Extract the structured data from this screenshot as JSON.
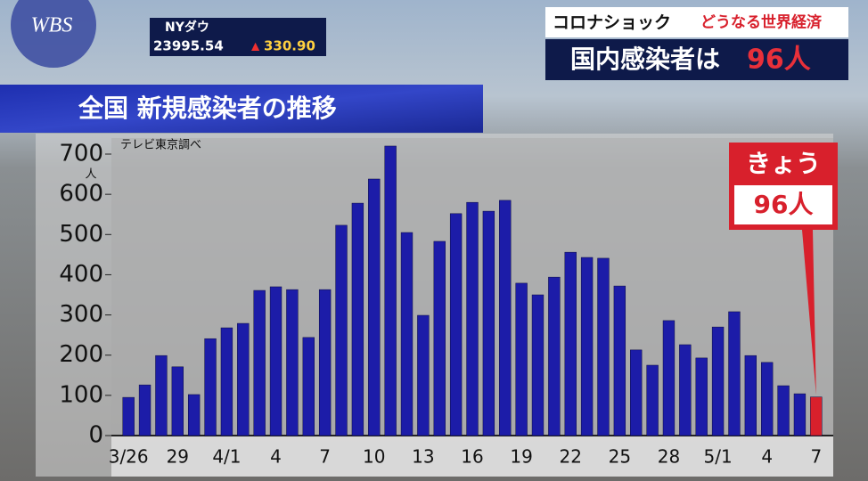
{
  "logo": "WBS",
  "ticker": {
    "label": "NYダウ",
    "value": "23995.54",
    "arrow": "▲",
    "change": "330.90"
  },
  "headline": {
    "kicker": "コロナショック",
    "kicker_sub": "どうなる世界経済",
    "main": "国内感染者は",
    "main_number": "96人"
  },
  "chart_data": {
    "type": "bar",
    "title": "全国 新規感染者の推移",
    "source": "テレビ東京調べ",
    "y_unit": "人",
    "categories": [
      "3/26",
      null,
      null,
      "29",
      null,
      null,
      "4/1",
      null,
      null,
      "4",
      null,
      null,
      "7",
      null,
      null,
      "10",
      null,
      null,
      "13",
      null,
      null,
      "16",
      null,
      null,
      "19",
      null,
      null,
      "22",
      null,
      null,
      "25",
      null,
      null,
      "28",
      null,
      null,
      "5/1",
      null,
      null,
      "4",
      null,
      null,
      "7"
    ],
    "values": [
      95,
      126,
      199,
      171,
      102,
      241,
      268,
      279,
      361,
      370,
      363,
      244,
      363,
      523,
      578,
      638,
      720,
      505,
      299,
      483,
      552,
      580,
      558,
      585,
      379,
      350,
      394,
      456,
      443,
      441,
      372,
      213,
      175,
      286,
      226,
      193,
      270,
      308,
      199,
      182,
      124,
      104,
      96
    ],
    "colors": [
      "#1c1ca8",
      "#1c1ca8",
      "#1c1ca8",
      "#1c1ca8",
      "#1c1ca8",
      "#1c1ca8",
      "#1c1ca8",
      "#1c1ca8",
      "#1c1ca8",
      "#1c1ca8",
      "#1c1ca8",
      "#1c1ca8",
      "#1c1ca8",
      "#1c1ca8",
      "#1c1ca8",
      "#1c1ca8",
      "#1c1ca8",
      "#1c1ca8",
      "#1c1ca8",
      "#1c1ca8",
      "#1c1ca8",
      "#1c1ca8",
      "#1c1ca8",
      "#1c1ca8",
      "#1c1ca8",
      "#1c1ca8",
      "#1c1ca8",
      "#1c1ca8",
      "#1c1ca8",
      "#1c1ca8",
      "#1c1ca8",
      "#1c1ca8",
      "#1c1ca8",
      "#1c1ca8",
      "#1c1ca8",
      "#1c1ca8",
      "#1c1ca8",
      "#1c1ca8",
      "#1c1ca8",
      "#1c1ca8",
      "#1c1ca8",
      "#1c1ca8",
      "#d8202c"
    ],
    "ylim": [
      0,
      700
    ],
    "yticks": [
      0,
      100,
      200,
      300,
      400,
      500,
      600,
      700
    ],
    "annotation": {
      "label": "きょう",
      "value_text": "96人"
    }
  }
}
